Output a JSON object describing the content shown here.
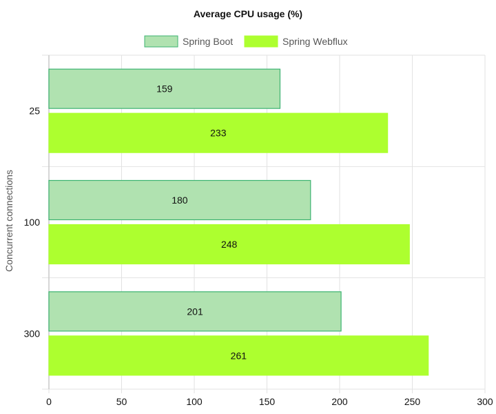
{
  "chart_data": {
    "type": "bar",
    "orientation": "horizontal",
    "title": "Average CPU usage (%)",
    "xlabel": "",
    "ylabel": "Concurrent connections",
    "categories": [
      "25",
      "100",
      "300"
    ],
    "series": [
      {
        "name": "Spring Boot",
        "values": [
          159,
          180,
          201
        ],
        "fill": "#b0e2b0",
        "stroke": "#3cb371"
      },
      {
        "name": "Spring Webflux",
        "values": [
          233,
          248,
          261
        ],
        "fill": "#adff2f",
        "stroke": "#adff2f"
      }
    ],
    "xlim": [
      0,
      300
    ],
    "xticks": [
      "0",
      "50",
      "100",
      "150",
      "200",
      "250",
      "300"
    ],
    "grid": true,
    "legend": "top-center",
    "data_labels": true
  }
}
